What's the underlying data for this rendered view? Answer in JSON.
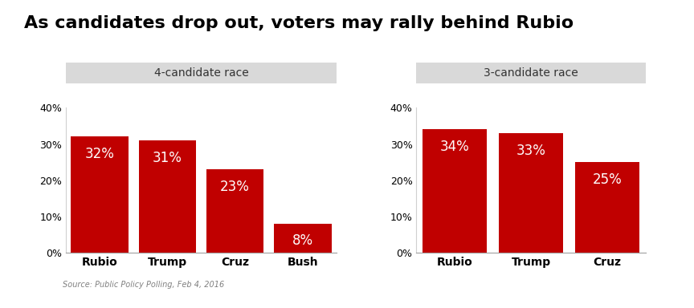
{
  "title": "As candidates drop out, voters may rally behind Rubio",
  "source": "Source: Public Policy Polling, Feb 4, 2016",
  "chart_data": [
    {
      "type": "bar",
      "title": "4-candidate race",
      "categories": [
        "Rubio",
        "Trump",
        "Cruz",
        "Bush"
      ],
      "values": [
        32,
        31,
        23,
        8
      ],
      "value_labels": [
        "32%",
        "31%",
        "23%",
        "8%"
      ],
      "data_labels": true,
      "color": "#c00000",
      "grid": false,
      "ylim": [
        0,
        40
      ],
      "yticks": [
        {
          "value": 0,
          "label": "0%"
        },
        {
          "value": 10,
          "label": "10%"
        },
        {
          "value": 20,
          "label": "20%"
        },
        {
          "value": 30,
          "label": "30%"
        },
        {
          "value": 40,
          "label": "40%"
        }
      ]
    },
    {
      "type": "bar",
      "title": "3-candidate race",
      "categories": [
        "Rubio",
        "Trump",
        "Cruz"
      ],
      "values": [
        34,
        33,
        25
      ],
      "value_labels": [
        "34%",
        "33%",
        "25%"
      ],
      "data_labels": true,
      "color": "#c00000",
      "grid": false,
      "ylim": [
        0,
        40
      ],
      "yticks": [
        {
          "value": 0,
          "label": "0%"
        },
        {
          "value": 10,
          "label": "10%"
        },
        {
          "value": 20,
          "label": "20%"
        },
        {
          "value": 30,
          "label": "30%"
        },
        {
          "value": 40,
          "label": "40%"
        }
      ]
    }
  ]
}
